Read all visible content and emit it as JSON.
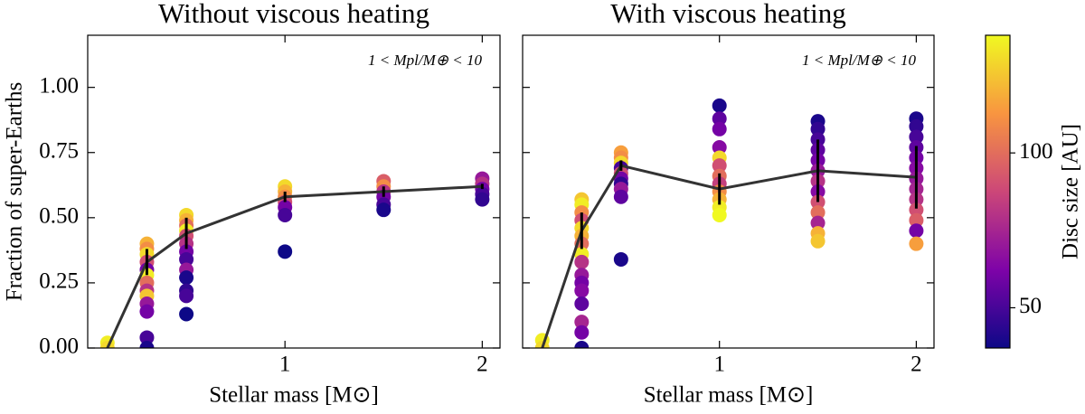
{
  "chart_data": [
    {
      "type": "scatter",
      "title": "Without viscous heating",
      "annotation": "1 < Mpl/M⊕ < 10",
      "x_label": "Stellar mass [M⊙]",
      "y_label": "Fraction of super-Earths",
      "xlim": [
        0,
        2.09
      ],
      "ylim": [
        0,
        1.2
      ],
      "xticks": [
        1,
        2
      ],
      "yticks": [
        {
          "value": 0,
          "label": "0.00"
        },
        {
          "value": 0.25,
          "label": "0.25"
        },
        {
          "value": 0.5,
          "label": "0.50"
        },
        {
          "value": 0.75,
          "label": "0.75"
        },
        {
          "value": 1,
          "label": "1.00"
        }
      ],
      "points": {
        "x": [
          0.1,
          0.1,
          0.3,
          0.3,
          0.3,
          0.3,
          0.3,
          0.3,
          0.3,
          0.3,
          0.3,
          0.3,
          0.3,
          0.3,
          0.3,
          0.5,
          0.5,
          0.5,
          0.5,
          0.5,
          0.5,
          0.5,
          0.5,
          0.5,
          0.5,
          0.5,
          0.5,
          0.5,
          1,
          1,
          1,
          1,
          1,
          1,
          1,
          1.5,
          1.5,
          1.5,
          1.5,
          1.5,
          1.5,
          2,
          2,
          2,
          2,
          2
        ],
        "y": [
          0.02,
          0.0,
          0.4,
          0.38,
          0.36,
          0.33,
          0.3,
          0.28,
          0.25,
          0.22,
          0.2,
          0.17,
          0.14,
          0.04,
          0.0,
          0.51,
          0.49,
          0.47,
          0.45,
          0.43,
          0.4,
          0.37,
          0.34,
          0.3,
          0.27,
          0.22,
          0.2,
          0.13,
          0.62,
          0.6,
          0.58,
          0.56,
          0.54,
          0.51,
          0.37,
          0.64,
          0.62,
          0.6,
          0.58,
          0.55,
          0.53,
          0.65,
          0.63,
          0.61,
          0.59,
          0.57
        ],
        "c": [
          135,
          130,
          120,
          110,
          130,
          90,
          60,
          135,
          100,
          80,
          125,
          70,
          60,
          50,
          40,
          130,
          120,
          100,
          135,
          90,
          80,
          60,
          50,
          70,
          40,
          45,
          50,
          35,
          130,
          120,
          110,
          90,
          60,
          50,
          35,
          95,
          110,
          80,
          60,
          50,
          40,
          70,
          80,
          60,
          50,
          45
        ]
      },
      "line": {
        "color": "#333333",
        "x": [
          0.1,
          0.3,
          0.5,
          1,
          1.5,
          2
        ],
        "y": [
          0.0,
          0.33,
          0.44,
          0.58,
          0.6,
          0.62
        ],
        "errors": [
          0.0,
          0.05,
          0.06,
          0.02,
          0.02,
          0.01
        ]
      }
    },
    {
      "type": "scatter",
      "title": "With viscous heating",
      "annotation": "1 < Mpl/M⊕ < 10",
      "x_label": "Stellar mass [M⊙]",
      "xlim": [
        0,
        2.09
      ],
      "ylim": [
        0,
        1.2
      ],
      "xticks": [
        1,
        2
      ],
      "yticks": [
        0,
        0.25,
        0.5,
        0.75,
        1
      ],
      "points": {
        "x": [
          0.1,
          0.1,
          0.3,
          0.3,
          0.3,
          0.3,
          0.3,
          0.3,
          0.3,
          0.3,
          0.3,
          0.3,
          0.3,
          0.3,
          0.3,
          0.3,
          0.3,
          0.3,
          0.5,
          0.5,
          0.5,
          0.5,
          0.5,
          0.5,
          0.5,
          0.5,
          0.5,
          0.5,
          1,
          1,
          1,
          1,
          1,
          1,
          1,
          1,
          1,
          1,
          1,
          1,
          1.5,
          1.5,
          1.5,
          1.5,
          1.5,
          1.5,
          1.5,
          1.5,
          1.5,
          1.5,
          1.5,
          1.5,
          1.5,
          2,
          2,
          2,
          2,
          2,
          2,
          2,
          2,
          2,
          2,
          2,
          2,
          2
        ],
        "y": [
          0.03,
          0.0,
          0.57,
          0.55,
          0.52,
          0.49,
          0.46,
          0.43,
          0.4,
          0.36,
          0.33,
          0.28,
          0.25,
          0.22,
          0.17,
          0.1,
          0.06,
          0.0,
          0.75,
          0.73,
          0.71,
          0.69,
          0.67,
          0.65,
          0.63,
          0.61,
          0.58,
          0.34,
          0.93,
          0.88,
          0.84,
          0.77,
          0.73,
          0.7,
          0.66,
          0.63,
          0.6,
          0.57,
          0.54,
          0.51,
          0.87,
          0.84,
          0.8,
          0.76,
          0.72,
          0.68,
          0.64,
          0.6,
          0.56,
          0.52,
          0.48,
          0.44,
          0.41,
          0.88,
          0.85,
          0.81,
          0.77,
          0.73,
          0.69,
          0.65,
          0.61,
          0.57,
          0.53,
          0.49,
          0.45,
          0.4
        ],
        "c": [
          135,
          130,
          125,
          135,
          110,
          90,
          130,
          120,
          100,
          135,
          80,
          70,
          60,
          65,
          55,
          75,
          60,
          40,
          115,
          110,
          130,
          50,
          90,
          60,
          45,
          70,
          55,
          40,
          40,
          55,
          60,
          65,
          130,
          90,
          100,
          85,
          110,
          120,
          135,
          138,
          40,
          45,
          50,
          55,
          60,
          70,
          80,
          65,
          90,
          100,
          75,
          120,
          125,
          40,
          45,
          50,
          55,
          60,
          65,
          70,
          75,
          80,
          90,
          95,
          60,
          115
        ]
      },
      "line": {
        "color": "#333333",
        "x": [
          0.1,
          0.3,
          0.5,
          1,
          1.5,
          2
        ],
        "y": [
          0.0,
          0.45,
          0.7,
          0.61,
          0.68,
          0.655
        ],
        "errors": [
          0.0,
          0.07,
          0.02,
          0.06,
          0.12,
          0.12
        ]
      }
    }
  ],
  "colorbar": {
    "label": "Disc size [AU]",
    "colormap": "plasma",
    "clim": [
      37,
      138
    ],
    "ticks": [
      50,
      100
    ]
  }
}
